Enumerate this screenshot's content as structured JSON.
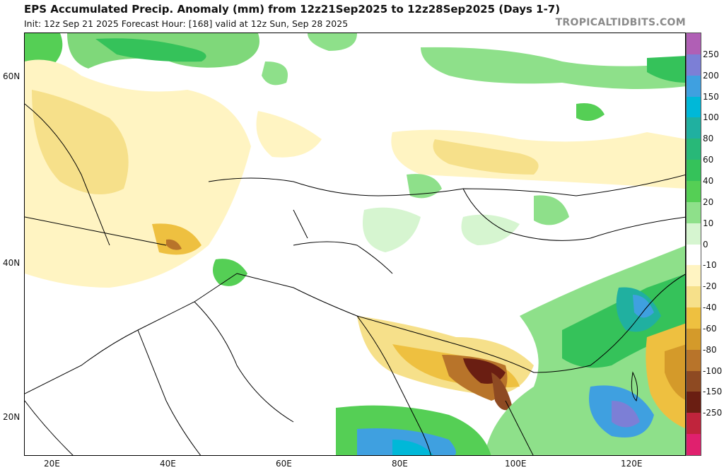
{
  "header": {
    "title": "EPS Accumulated Precip. Anomaly (mm) from 12z21Sep2025 to 12z28Sep2025 (Days 1-7)",
    "subtitle": "Init: 12z Sep 21 2025   Forecast Hour: [168]   valid at 12z Sun, Sep 28 2025",
    "credit": "TROPICALTIDBITS.COM"
  },
  "map": {
    "lat_labels": [
      "60N",
      "40N",
      "20N"
    ],
    "lon_labels": [
      "20E",
      "40E",
      "60E",
      "80E",
      "100E",
      "120E"
    ]
  },
  "colorbar": {
    "labels": [
      "250",
      "200",
      "150",
      "100",
      "80",
      "60",
      "40",
      "20",
      "10",
      "0",
      "-10",
      "-20",
      "-40",
      "-60",
      "-80",
      "-100",
      "-150",
      "-250"
    ],
    "colors": [
      "#b05fb5",
      "#7c7fd6",
      "#3fa0e0",
      "#00b8d8",
      "#20b0a0",
      "#28b878",
      "#35c25a",
      "#55cf55",
      "#8ee08a",
      "#d6f5d0",
      "#ffffff",
      "#fff4c2",
      "#f6e08a",
      "#eec040",
      "#d49a2a",
      "#b8742a",
      "#8e4a22",
      "#6a1e12",
      "#c0243c",
      "#e0206e"
    ]
  }
}
